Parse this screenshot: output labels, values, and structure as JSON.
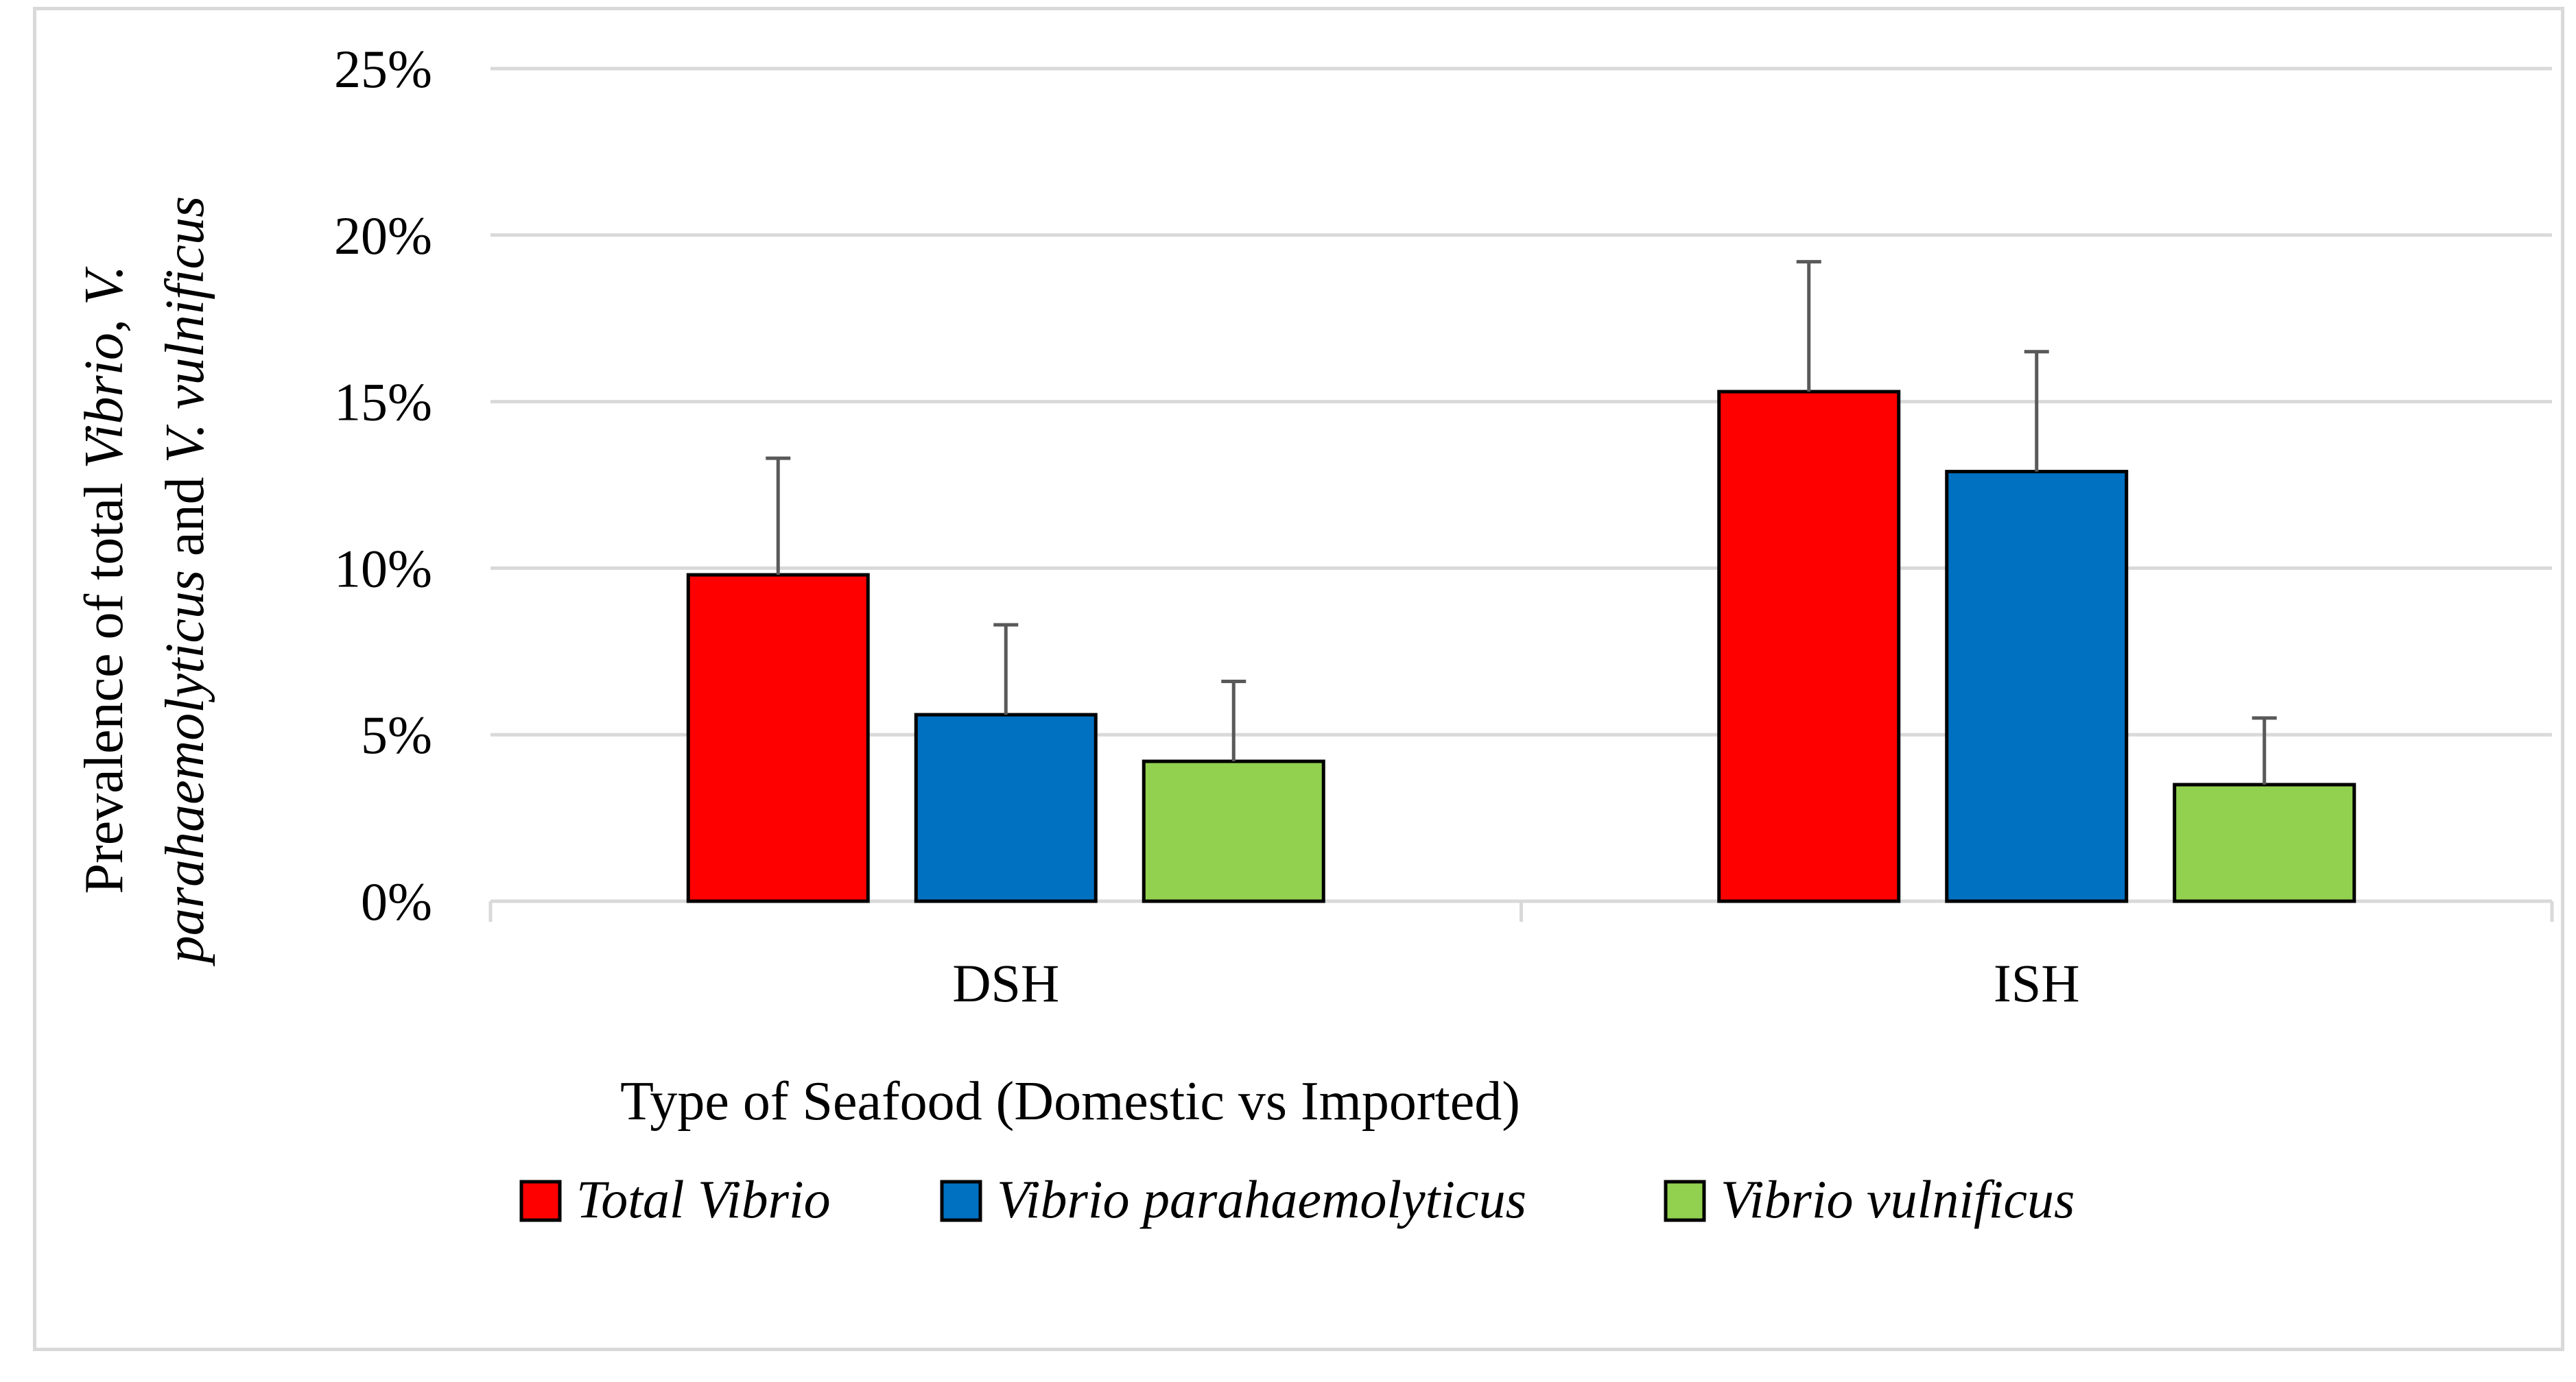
{
  "chart_data": {
    "type": "bar",
    "title": "",
    "xlabel": "Type of Seafood (Domestic vs Imported)",
    "ylabel_parts": [
      {
        "text": "Prevalence of total ",
        "italic": false
      },
      {
        "text": "Vibrio",
        "italic": true
      },
      {
        "text": ", ",
        "italic": false
      },
      {
        "text": "V.",
        "italic": true
      }
    ],
    "ylabel_parts_line2": [
      {
        "text": "parahaemolyticus",
        "italic": true
      },
      {
        "text": " and ",
        "italic": false
      },
      {
        "text": "V. vulnificus",
        "italic": true
      }
    ],
    "categories": [
      "DSH",
      "ISH"
    ],
    "series": [
      {
        "name": "Total Vibrio",
        "color": "#ff0000",
        "values": [
          0.098,
          0.153
        ],
        "errors": [
          0.035,
          0.039
        ]
      },
      {
        "name": "Vibrio parahaemolyticus",
        "color": "#0070c0",
        "values": [
          0.056,
          0.129
        ],
        "errors": [
          0.027,
          0.036
        ]
      },
      {
        "name": "Vibrio vulnificus",
        "color": "#92d050",
        "values": [
          0.042,
          0.035
        ],
        "errors": [
          0.024,
          0.02
        ]
      }
    ],
    "ylim": [
      0,
      0.25
    ],
    "yticks": [
      0,
      0.05,
      0.1,
      0.15,
      0.2,
      0.25
    ],
    "ytick_labels": [
      "0%",
      "5%",
      "10%",
      "15%",
      "20%",
      "25%"
    ],
    "grid": true,
    "legend_position": "bottom"
  },
  "colors": {
    "grid": "#d9d9d9",
    "frame": "#d9d9d9",
    "error_bar": "#595959",
    "bar_outline": "#000000"
  }
}
